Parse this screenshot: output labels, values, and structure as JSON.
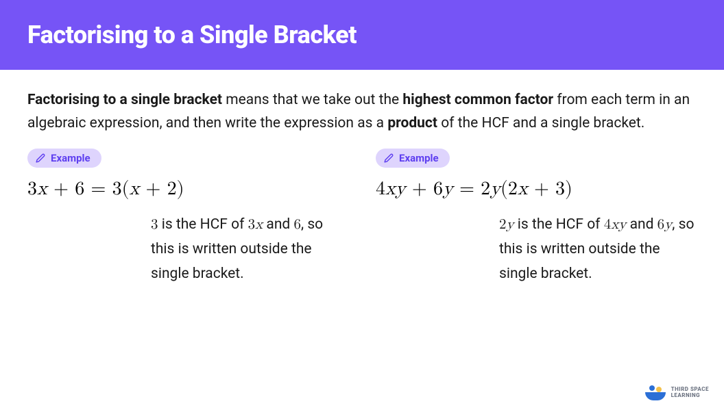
{
  "header": {
    "title": "Factorising to a Single Bracket",
    "background": "#7654f6",
    "text_color": "#ffffff"
  },
  "intro": {
    "text_parts": [
      {
        "text": "Factorising to a single bracket",
        "bold": true
      },
      {
        "text": " means that we take out the ",
        "bold": false
      },
      {
        "text": "highest common factor",
        "bold": true
      },
      {
        "text": " from each term in an algebraic expression, and then write the expression as a ",
        "bold": false
      },
      {
        "text": "product",
        "bold": true
      },
      {
        "text": " of the HCF and a single bracket.",
        "bold": false
      }
    ],
    "text_color": "#1a1a1a",
    "fontsize": 21
  },
  "example_pill": {
    "label": "Example",
    "background": "#ded4fd",
    "text_color": "#5e3ff0",
    "icon": "pencil-icon"
  },
  "examples": [
    {
      "equation_html": "3<span class='math-var'>x</span> + 6 = 3(<span class='math-var'>x</span> + 2)",
      "explanation_html": "<span class='math'>3</span> is the HCF of <span class='math'>3<span class='math-var'>x</span></span> and <span class='math'>6</span>, so this is written outside the single bracket."
    },
    {
      "equation_html": "4<span class='math-var'>xy</span> + 6<span class='math-var'>y</span> = 2<span class='math-var'>y</span>(2<span class='math-var'>x</span> + 3)",
      "explanation_html": "<span class='math'>2<span class='math-var'>y</span></span> is the HCF of <span class='math'>4<span class='math-var'>xy</span></span> and <span class='math'>6<span class='math-var'>y</span></span>, so this is written outside the single bracket."
    }
  ],
  "logo": {
    "text_line1": "THIRD SPACE",
    "text_line2": "LEARNING",
    "text_color": "#6b7280",
    "dot1_color": "#2b6fd6",
    "dot2_color": "#f3c14b",
    "arc_color": "#2b6fd6"
  },
  "colors": {
    "page_background": "#ffffff",
    "equation_color": "#000000"
  }
}
